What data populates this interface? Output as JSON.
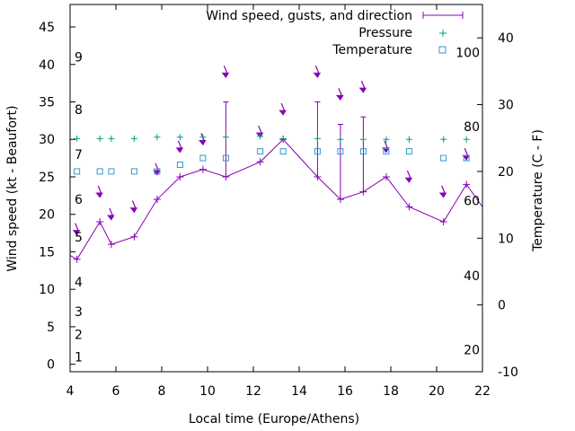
{
  "chart_data": {
    "type": "line",
    "xlabel": "Local time (Europe/Athens)",
    "ylabel": "Wind speed (kt - Beaufort)",
    "y2label": "Temperature (C - F)",
    "xlim": [
      4,
      22
    ],
    "ylim": [
      -1,
      48
    ],
    "y2lim": [
      -10,
      45
    ],
    "x_ticks": [
      4,
      6,
      8,
      10,
      12,
      14,
      16,
      18,
      20,
      22
    ],
    "y_ticks": [
      0,
      5,
      10,
      15,
      20,
      25,
      30,
      35,
      40,
      45
    ],
    "y2_ticks": [
      -10,
      0,
      10,
      20,
      30,
      40
    ],
    "beaufort_labels": [
      {
        "label": "1",
        "y": 1
      },
      {
        "label": "2",
        "y": 4
      },
      {
        "label": "3",
        "y": 7
      },
      {
        "label": "4",
        "y": 11
      },
      {
        "label": "5",
        "y": 17
      },
      {
        "label": "6",
        "y": 22
      },
      {
        "label": "7",
        "y": 28
      },
      {
        "label": "8",
        "y": 34
      },
      {
        "label": "9",
        "y": 41
      }
    ],
    "fahrenheit_labels": [
      {
        "label": "20",
        "y2": -6.7
      },
      {
        "label": "40",
        "y2": 4.4
      },
      {
        "label": "60",
        "y2": 15.6
      },
      {
        "label": "80",
        "y2": 26.7
      },
      {
        "label": "100",
        "y2": 37.8
      }
    ],
    "legend": [
      {
        "name": "Wind speed, gusts, and direction",
        "color": "#8B00B4",
        "marker": "errorbar"
      },
      {
        "name": "Pressure",
        "color": "#009E73",
        "marker": "plus"
      },
      {
        "name": "Temperature",
        "color": "#3399CC",
        "marker": "square"
      }
    ],
    "legend_position": "top-right",
    "series": [
      {
        "name": "Wind speed, gusts, and direction",
        "color": "#8B00B4",
        "x": [
          4,
          4.3,
          5.3,
          5.8,
          6.8,
          7.8,
          8.8,
          9.8,
          10.8,
          12.3,
          13.3,
          14.8,
          15.8,
          16.8,
          17.8,
          18.8,
          20.3,
          21.3,
          22
        ],
        "y": [
          14.5,
          14,
          19,
          16,
          17,
          22,
          25,
          26,
          25,
          27,
          30,
          25,
          22,
          23,
          25,
          21,
          19,
          24,
          21
        ],
        "gusts": [
          null,
          null,
          null,
          null,
          null,
          null,
          null,
          null,
          35,
          null,
          null,
          35,
          32,
          33,
          null,
          null,
          null,
          null,
          null
        ]
      },
      {
        "name": "Pressure",
        "color": "#009E73",
        "x": [
          4.3,
          5.3,
          5.8,
          6.8,
          7.8,
          8.8,
          9.8,
          10.8,
          12.3,
          13.3,
          14.8,
          15.8,
          16.8,
          17.8,
          18.8,
          20.3,
          21.3
        ],
        "y": [
          30.1,
          30.1,
          30.1,
          30.1,
          30.3,
          30.3,
          30.3,
          30.3,
          30.4,
          30.1,
          30.1,
          30.0,
          30.0,
          30.0,
          30.0,
          30.0,
          30.0
        ]
      },
      {
        "name": "Temperature",
        "color": "#3399CC",
        "x": [
          4.3,
          5.3,
          5.8,
          6.8,
          7.8,
          8.8,
          9.8,
          10.8,
          12.3,
          13.3,
          14.8,
          15.8,
          16.8,
          17.8,
          18.8,
          20.3,
          21.3
        ],
        "y2": [
          20,
          20,
          20,
          20,
          20,
          21,
          22,
          22,
          23,
          23,
          23,
          23,
          23,
          23,
          23,
          22,
          22
        ]
      }
    ],
    "direction_arrows": [
      {
        "x": 4.3,
        "y": 17.5
      },
      {
        "x": 5.3,
        "y": 22.5
      },
      {
        "x": 5.8,
        "y": 19.5
      },
      {
        "x": 6.8,
        "y": 20.5
      },
      {
        "x": 7.8,
        "y": 25.5
      },
      {
        "x": 8.8,
        "y": 28.5
      },
      {
        "x": 9.8,
        "y": 29.5
      },
      {
        "x": 10.8,
        "y": 38.5
      },
      {
        "x": 12.3,
        "y": 30.5
      },
      {
        "x": 13.3,
        "y": 33.5
      },
      {
        "x": 14.8,
        "y": 38.5
      },
      {
        "x": 15.8,
        "y": 35.5
      },
      {
        "x": 16.8,
        "y": 36.5
      },
      {
        "x": 17.8,
        "y": 28.5
      },
      {
        "x": 18.8,
        "y": 24.5
      },
      {
        "x": 20.3,
        "y": 22.5
      },
      {
        "x": 21.3,
        "y": 27.5
      }
    ]
  }
}
